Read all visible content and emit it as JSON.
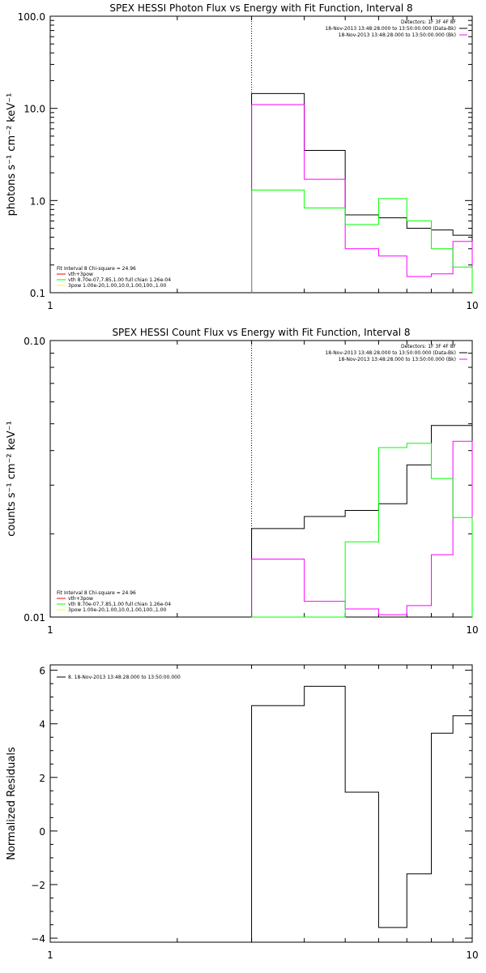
{
  "chart_data": [
    {
      "type": "line",
      "title": "SPEX HESSI Photon Flux vs Energy with Fit Function, Interval 8",
      "ylabel": "photons s⁻¹ cm⁻² keV⁻¹",
      "xlim": [
        1,
        10
      ],
      "ylim": [
        0.1,
        100
      ],
      "x_scale": "log",
      "y_scale": "log",
      "x_tick_labels": [
        "1",
        "10"
      ],
      "y_tick_labels": [
        "0.1",
        "1.0",
        "10.0",
        "100.0"
      ],
      "y_ticks": [
        0.1,
        1,
        10,
        100
      ],
      "vline_x": 3,
      "legend_right": {
        "lines": [
          "Detectors: 1F 3F 4F 8F",
          "18-Nov-2013 13:48:28.000 to 13:50:00.000 (Data-Bk)",
          "18-Nov-2013 13:48:28.000 to 13:50:00.000 (Bk)"
        ],
        "colors": [
          "#000000",
          "#000000",
          "#ff00ff"
        ]
      },
      "legend_left": {
        "lines": [
          "Fit Interval 8   Chi-square = 24.96",
          "vth+3pow",
          "vth 8.70e-07,7.85,1.00   full chian 1.26e-04",
          "3pow 1.00e-20,1.00,10.0,1.00,100.,1.00"
        ],
        "colors": [
          "#000000",
          "#ff0000",
          "#00ff00",
          "#ffff00"
        ]
      },
      "x_edges": [
        3,
        4,
        5,
        6,
        7,
        8,
        9,
        10
      ],
      "series": [
        {
          "color": "#000000",
          "values": [
            14.5,
            3.5,
            0.7,
            0.65,
            0.5,
            0.48,
            0.42
          ]
        },
        {
          "color": "#ff00ff",
          "values": [
            11.0,
            1.7,
            0.3,
            0.25,
            0.15,
            0.16,
            0.36
          ]
        },
        {
          "color": "#00ff00",
          "values": [
            1.3,
            0.83,
            0.55,
            1.05,
            0.6,
            0.3,
            0.19
          ]
        }
      ]
    },
    {
      "type": "line",
      "title": "SPEX HESSI Count Flux vs Energy with Fit Function, Interval 8",
      "ylabel": "counts s⁻¹ cm⁻² keV⁻¹",
      "xlim": [
        1,
        10
      ],
      "ylim": [
        0.01,
        0.1
      ],
      "x_scale": "log",
      "y_scale": "log",
      "x_tick_labels": [
        "1",
        "10"
      ],
      "y_tick_labels": [
        "0.01",
        "0.10"
      ],
      "y_ticks": [
        0.01,
        0.1
      ],
      "vline_x": 3,
      "legend_right": {
        "lines": [
          "Detectors: 1F 3F 4F 8F",
          "18-Nov-2013 13:48:28.000 to 13:50:00.000 (Data-Bk)",
          "18-Nov-2013 13:48:28.000 to 13:50:00.000 (Bk)"
        ],
        "colors": [
          "#000000",
          "#000000",
          "#ff00ff"
        ]
      },
      "legend_left": {
        "lines": [
          "Fit Interval 8   Chi-square = 24.96",
          "vth+3pow",
          "vth 8.70e-07,7.85,1.00   full chian 1.26e-04",
          "3pow 1.00e-20,1.00,10.0,1.00,100.,1.00"
        ],
        "colors": [
          "#000000",
          "#ff0000",
          "#00ff00",
          "#ffff00"
        ]
      },
      "x_edges": [
        3,
        4,
        5,
        6,
        7,
        8,
        9,
        10
      ],
      "series": [
        {
          "color": "#000000",
          "values": [
            0.0209,
            0.0231,
            0.0243,
            0.0257,
            0.0355,
            0.0493,
            0.0493
          ]
        },
        {
          "color": "#ff00ff",
          "values": [
            0.0162,
            0.0114,
            0.0107,
            0.0102,
            0.011,
            0.0168,
            0.0432
          ]
        },
        {
          "color": "#00ff00",
          "values": [
            0.01,
            0.01,
            0.0187,
            0.041,
            0.0425,
            0.0317,
            0.0229
          ]
        }
      ]
    },
    {
      "type": "line",
      "title": "",
      "ylabel": "Normalized Residuals",
      "xlim": [
        1,
        10
      ],
      "ylim": [
        -4.15,
        6.2
      ],
      "x_scale": "log",
      "y_scale": "linear",
      "x_tick_labels": [
        "1",
        "10"
      ],
      "y_tick_labels": [
        "−4",
        "−2",
        "0",
        "2",
        "4",
        "6"
      ],
      "y_ticks": [
        -4,
        -2,
        0,
        2,
        4,
        6
      ],
      "legend_left": {
        "lines": [
          "8. 18-Nov-2013 13:48:28.000 to 13:50:00.000"
        ],
        "colors": [
          "#000000"
        ]
      },
      "x_edges": [
        3,
        4,
        5,
        6,
        7,
        8,
        9,
        10
      ],
      "series": [
        {
          "color": "#000000",
          "values": [
            4.68,
            5.4,
            1.45,
            -3.6,
            -1.6,
            3.65,
            4.3
          ]
        }
      ]
    }
  ]
}
